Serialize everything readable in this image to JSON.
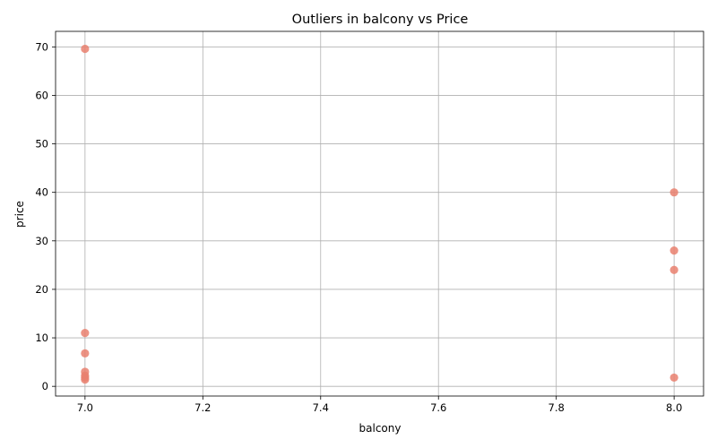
{
  "chart_data": {
    "type": "scatter",
    "title": "Outliers in balcony vs Price",
    "xlabel": "balcony",
    "ylabel": "price",
    "xlim": [
      6.95,
      8.05
    ],
    "ylim": [
      -2.0,
      73.2
    ],
    "xticks": [
      7.0,
      7.2,
      7.4,
      7.6,
      7.8,
      8.0
    ],
    "xtick_labels": [
      "7.0",
      "7.2",
      "7.4",
      "7.6",
      "7.8",
      "8.0"
    ],
    "yticks": [
      0,
      10,
      20,
      30,
      40,
      50,
      60,
      70
    ],
    "ytick_labels": [
      "0",
      "10",
      "20",
      "30",
      "40",
      "50",
      "60",
      "70"
    ],
    "grid": true,
    "point_color": "#e9806e",
    "points": [
      {
        "x": 7.0,
        "y": 69.6
      },
      {
        "x": 7.0,
        "y": 11.0
      },
      {
        "x": 7.0,
        "y": 6.8
      },
      {
        "x": 7.0,
        "y": 3.0
      },
      {
        "x": 7.0,
        "y": 2.2
      },
      {
        "x": 7.0,
        "y": 1.8
      },
      {
        "x": 7.0,
        "y": 1.4
      },
      {
        "x": 8.0,
        "y": 40.0
      },
      {
        "x": 8.0,
        "y": 28.0
      },
      {
        "x": 8.0,
        "y": 24.0
      },
      {
        "x": 8.0,
        "y": 1.8
      }
    ]
  }
}
